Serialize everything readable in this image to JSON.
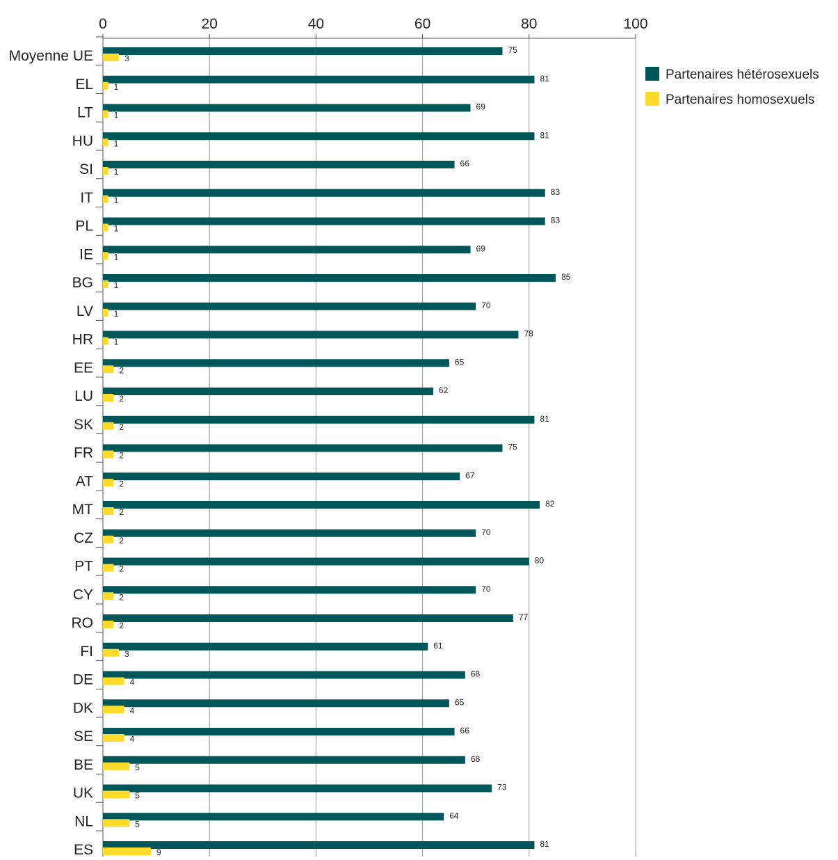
{
  "chart_data": {
    "type": "bar",
    "orientation": "horizontal",
    "title": "",
    "xlabel": "",
    "ylabel": "",
    "xlim": [
      0,
      100
    ],
    "xticks": [
      0,
      20,
      40,
      60,
      80,
      100
    ],
    "grid": true,
    "legend_position": "top-right",
    "categories": [
      "Moyenne UE",
      "EL",
      "LT",
      "HU",
      "SI",
      "IT",
      "PL",
      "IE",
      "BG",
      "LV",
      "HR",
      "EE",
      "LU",
      "SK",
      "FR",
      "AT",
      "MT",
      "CZ",
      "PT",
      "CY",
      "RO",
      "FI",
      "DE",
      "DK",
      "SE",
      "BE",
      "UK",
      "NL",
      "ES"
    ],
    "series": [
      {
        "name": "Partenaires hétérosexuels",
        "color": "#00575a",
        "values": [
          75,
          81,
          69,
          81,
          66,
          83,
          83,
          69,
          85,
          70,
          78,
          65,
          62,
          81,
          75,
          67,
          82,
          70,
          80,
          70,
          77,
          61,
          68,
          65,
          66,
          68,
          73,
          64,
          81
        ]
      },
      {
        "name": "Partenaires homosexuels",
        "color": "#fddb2b",
        "values": [
          3,
          1,
          1,
          1,
          1,
          1,
          1,
          1,
          1,
          1,
          1,
          2,
          2,
          2,
          2,
          2,
          2,
          2,
          2,
          2,
          2,
          3,
          4,
          4,
          4,
          5,
          5,
          5,
          9
        ]
      }
    ]
  }
}
